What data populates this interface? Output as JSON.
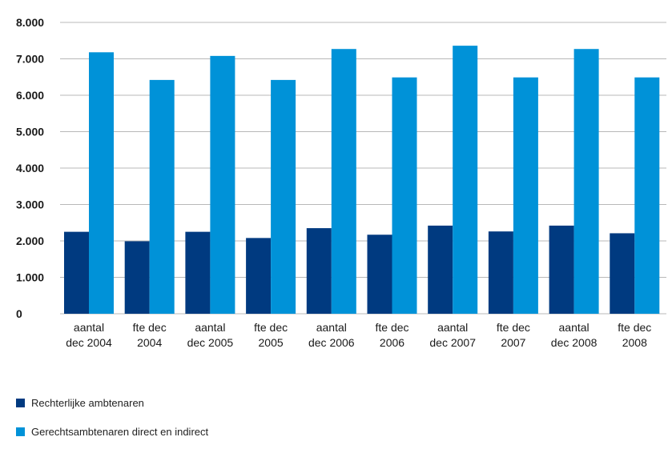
{
  "chart_data": {
    "type": "bar",
    "title": "",
    "xlabel": "",
    "ylabel": "",
    "ylim": [
      0,
      8000
    ],
    "yticks": [
      0,
      1000,
      2000,
      3000,
      4000,
      5000,
      6000,
      7000,
      8000
    ],
    "ytick_labels": [
      "0",
      "1.000",
      "2.000",
      "3.000",
      "4.000",
      "5.000",
      "6.000",
      "7.000",
      "8.000"
    ],
    "grid": true,
    "legend_position": "bottom-left",
    "categories": [
      [
        "aantal",
        "dec 2004"
      ],
      [
        "fte dec",
        "2004"
      ],
      [
        "aantal",
        "dec 2005"
      ],
      [
        "fte dec",
        "2005"
      ],
      [
        "aantal",
        "dec 2006"
      ],
      [
        "fte dec",
        "2006"
      ],
      [
        "aantal",
        "dec 2007"
      ],
      [
        "fte dec",
        "2007"
      ],
      [
        "aantal",
        "dec 2008"
      ],
      [
        "fte dec",
        "2008"
      ]
    ],
    "series": [
      {
        "name": "Rechterlijke ambtenaren",
        "color": "#003a80",
        "values": [
          2250,
          1990,
          2250,
          2080,
          2350,
          2170,
          2420,
          2260,
          2420,
          2210
        ]
      },
      {
        "name": "Gerechtsambtenaren direct en indirect",
        "color": "#0092d8",
        "values": [
          7180,
          6420,
          7080,
          6420,
          7270,
          6490,
          7360,
          6490,
          7270,
          6490
        ]
      }
    ]
  }
}
